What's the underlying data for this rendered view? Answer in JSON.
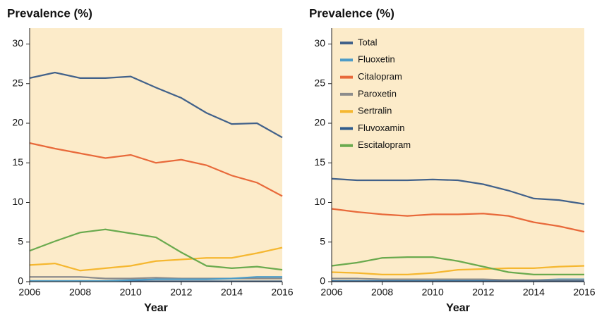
{
  "chart_data": [
    {
      "type": "line",
      "title": "Prevalence (%)",
      "xlabel": "Year",
      "x": [
        2006,
        2007,
        2008,
        2009,
        2010,
        2011,
        2012,
        2013,
        2014,
        2015,
        2016
      ],
      "xlim": [
        2006,
        2016
      ],
      "xticks": [
        2006,
        2008,
        2010,
        2012,
        2014,
        2016
      ],
      "ylim": [
        0,
        32
      ],
      "yticks": [
        0,
        5,
        10,
        15,
        20,
        25,
        30
      ],
      "background": "#fcebc9",
      "legend": false,
      "series": [
        {
          "color": "#2f5b8c",
          "values": [
            0.05,
            0.05,
            0.05,
            0.05,
            0.05,
            0.05,
            0.05,
            0.05,
            0.05,
            0.05,
            0.05
          ]
        },
        {
          "color": "#8c8c8c",
          "values": [
            0.6,
            0.6,
            0.6,
            0.4,
            0.4,
            0.5,
            0.4,
            0.4,
            0.4,
            0.4,
            0.4
          ]
        },
        {
          "color": "#4d9cc7",
          "values": [
            0.1,
            0.1,
            0.1,
            0.1,
            0.2,
            0.3,
            0.3,
            0.3,
            0.4,
            0.6,
            0.6
          ]
        },
        {
          "color": "#f5b730",
          "values": [
            2.1,
            2.3,
            1.4,
            1.7,
            2.0,
            2.6,
            2.8,
            3.0,
            3.0,
            3.6,
            4.3
          ]
        },
        {
          "color": "#6aaa4e",
          "values": [
            3.9,
            5.1,
            6.2,
            6.6,
            6.1,
            5.6,
            3.7,
            2.0,
            1.7,
            1.9,
            1.5
          ]
        },
        {
          "color": "#e8693a",
          "values": [
            17.5,
            16.8,
            16.2,
            15.6,
            16.0,
            15.0,
            15.4,
            14.7,
            13.4,
            12.5,
            10.8
          ]
        },
        {
          "color": "#41618a",
          "values": [
            25.7,
            26.4,
            25.7,
            25.7,
            25.9,
            24.5,
            23.2,
            21.3,
            19.9,
            20.0,
            18.2
          ]
        }
      ]
    },
    {
      "type": "line",
      "title": "Prevalence (%)",
      "xlabel": "Year",
      "x": [
        2006,
        2007,
        2008,
        2009,
        2010,
        2011,
        2012,
        2013,
        2014,
        2015,
        2016
      ],
      "xlim": [
        2006,
        2016
      ],
      "xticks": [
        2006,
        2008,
        2010,
        2012,
        2014,
        2016
      ],
      "ylim": [
        0,
        32
      ],
      "yticks": [
        0,
        5,
        10,
        15,
        20,
        25,
        30
      ],
      "background": "#fcebc9",
      "legend": true,
      "legend_position": "upper-left",
      "series": [
        {
          "name": "Total",
          "color": "#41618a",
          "values": [
            13.0,
            12.8,
            12.8,
            12.8,
            12.9,
            12.8,
            12.3,
            11.5,
            10.5,
            10.3,
            9.8
          ]
        },
        {
          "name": "Fluoxetin",
          "color": "#4d9cc7",
          "values": [
            0.1,
            0.1,
            0.1,
            0.1,
            0.1,
            0.2,
            0.2,
            0.2,
            0.2,
            0.3,
            0.3
          ]
        },
        {
          "name": "Citalopram",
          "color": "#e8693a",
          "values": [
            9.2,
            8.8,
            8.5,
            8.3,
            8.5,
            8.5,
            8.6,
            8.3,
            7.5,
            7.0,
            6.3
          ]
        },
        {
          "name": "Paroxetin",
          "color": "#8c8c8c",
          "values": [
            0.4,
            0.4,
            0.3,
            0.3,
            0.3,
            0.3,
            0.3,
            0.2,
            0.2,
            0.2,
            0.2
          ]
        },
        {
          "name": "Sertralin",
          "color": "#f5b730",
          "values": [
            1.2,
            1.1,
            0.9,
            0.9,
            1.1,
            1.5,
            1.6,
            1.7,
            1.7,
            1.9,
            2.0
          ]
        },
        {
          "name": "Fluvoxamin",
          "color": "#2f5b8c",
          "values": [
            0.05,
            0.05,
            0.05,
            0.05,
            0.05,
            0.05,
            0.05,
            0.05,
            0.05,
            0.05,
            0.05
          ]
        },
        {
          "name": "Escitalopram",
          "color": "#6aaa4e",
          "values": [
            2.0,
            2.4,
            3.0,
            3.1,
            3.1,
            2.6,
            1.9,
            1.2,
            0.9,
            0.9,
            0.9
          ]
        }
      ]
    }
  ]
}
